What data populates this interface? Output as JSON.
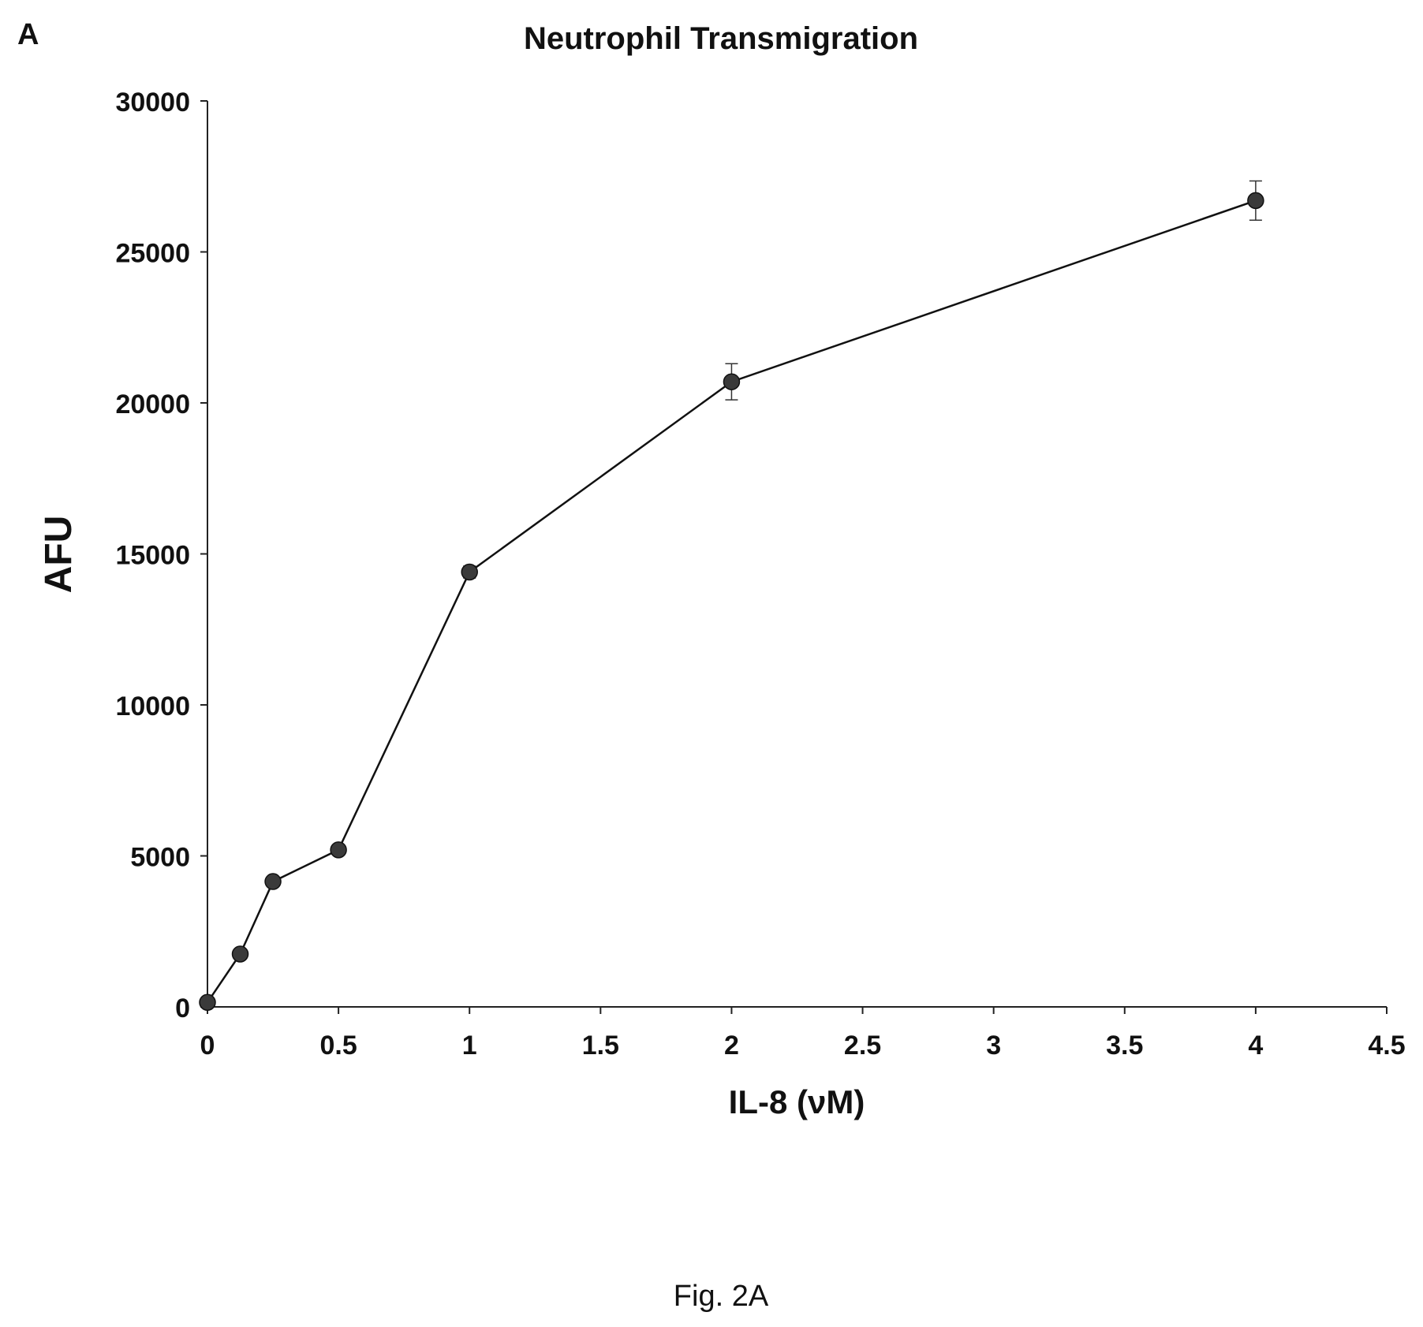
{
  "panel_label": "A",
  "figure_caption": "Fig. 2A",
  "chart_data": {
    "type": "line",
    "title": "Neutrophil Transmigration",
    "xlabel": "IL-8 (νM)",
    "ylabel": "AFU",
    "xlim": [
      0,
      4.5
    ],
    "ylim": [
      0,
      30000
    ],
    "xticks": [
      0,
      0.5,
      1,
      1.5,
      2,
      2.5,
      3,
      3.5,
      4,
      4.5
    ],
    "xtick_labels": [
      "0",
      "0.5",
      "1",
      "1.5",
      "2",
      "2.5",
      "3",
      "3.5",
      "4",
      "4.5"
    ],
    "yticks": [
      0,
      5000,
      10000,
      15000,
      20000,
      25000,
      30000
    ],
    "ytick_labels": [
      "0",
      "5000",
      "10000",
      "15000",
      "20000",
      "25000",
      "30000"
    ],
    "grid": false,
    "series": [
      {
        "x": [
          0,
          0.125,
          0.25,
          0.5,
          1,
          2,
          4
        ],
        "y": [
          150,
          1750,
          4150,
          5200,
          14400,
          20700,
          26700
        ],
        "error": [
          0,
          0,
          0,
          0,
          200,
          600,
          650
        ]
      }
    ]
  }
}
